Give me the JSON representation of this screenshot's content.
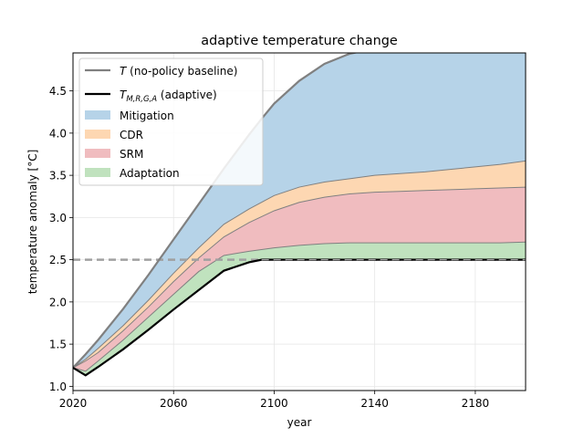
{
  "chart_data": {
    "type": "area",
    "title": "adaptive temperature change",
    "xlabel": "year",
    "ylabel": "temperature anomaly [°C]",
    "xlim": [
      2020,
      2200
    ],
    "ylim": [
      0.95,
      4.95
    ],
    "xticks": [
      2020,
      2060,
      2100,
      2140,
      2180
    ],
    "yticks": [
      1.0,
      1.5,
      2.0,
      2.5,
      3.0,
      3.5,
      4.0,
      4.5
    ],
    "ytick_labels": [
      "1.0",
      "1.5",
      "2.0",
      "2.5",
      "3.0",
      "3.5",
      "4.0",
      "4.5"
    ],
    "grid": true,
    "legend_position": "top-left",
    "x": [
      2020,
      2025,
      2030,
      2040,
      2050,
      2060,
      2070,
      2080,
      2090,
      2095,
      2100,
      2110,
      2120,
      2130,
      2140,
      2150,
      2160,
      2170,
      2180,
      2190,
      2200
    ],
    "series": [
      {
        "name": "T (no-policy baseline)",
        "role": "baseline",
        "color": "#808080",
        "values": [
          1.22,
          1.38,
          1.55,
          1.92,
          2.32,
          2.74,
          3.16,
          3.58,
          3.98,
          4.17,
          4.35,
          4.62,
          4.82,
          4.94,
          5.0,
          5.04,
          5.08,
          5.12,
          5.16,
          5.2,
          5.24
        ]
      },
      {
        "name": "Mitigation",
        "role": "band",
        "color": "#b6d3e8",
        "values": [
          1.22,
          1.32,
          1.45,
          1.72,
          2.02,
          2.34,
          2.64,
          2.92,
          3.1,
          3.18,
          3.26,
          3.36,
          3.42,
          3.46,
          3.5,
          3.52,
          3.54,
          3.57,
          3.6,
          3.63,
          3.67
        ]
      },
      {
        "name": "CDR",
        "role": "band",
        "color": "#fdd7b2",
        "values": [
          1.22,
          1.3,
          1.4,
          1.66,
          1.94,
          2.24,
          2.52,
          2.77,
          2.94,
          3.01,
          3.08,
          3.18,
          3.24,
          3.28,
          3.3,
          3.31,
          3.32,
          3.33,
          3.34,
          3.35,
          3.36
        ]
      },
      {
        "name": "SRM",
        "role": "band",
        "color": "#f0bcbf",
        "values": [
          1.22,
          1.18,
          1.3,
          1.55,
          1.82,
          2.09,
          2.36,
          2.55,
          2.6,
          2.62,
          2.64,
          2.67,
          2.69,
          2.7,
          2.7,
          2.7,
          2.7,
          2.7,
          2.7,
          2.7,
          2.71
        ]
      },
      {
        "name": "Adaptation",
        "role": "band",
        "color": "#c0e2be",
        "values": [
          1.22,
          1.13,
          1.23,
          1.44,
          1.67,
          1.91,
          2.14,
          2.37,
          2.47,
          2.5,
          2.5,
          2.5,
          2.5,
          2.5,
          2.5,
          2.5,
          2.5,
          2.5,
          2.5,
          2.5,
          2.5
        ]
      },
      {
        "name": "T_{M,R,G,A} (adaptive)",
        "role": "adaptive",
        "color": "#000000",
        "values": [
          1.22,
          1.13,
          1.23,
          1.44,
          1.67,
          1.91,
          2.14,
          2.37,
          2.47,
          2.5,
          2.5,
          2.5,
          2.5,
          2.5,
          2.5,
          2.5,
          2.5,
          2.5,
          2.5,
          2.5,
          2.5
        ]
      }
    ],
    "reference_line": {
      "y": 2.5,
      "style": "dashed",
      "color": "#a0a0a0"
    }
  },
  "legend": {
    "baseline_sym": "T",
    "baseline_rest": " (no-policy baseline)",
    "adaptive_sym": "T",
    "adaptive_sub": "M,R,G,A",
    "adaptive_rest": " (adaptive)",
    "mitigation": "Mitigation",
    "cdr": "CDR",
    "srm": "SRM",
    "adaptation": "Adaptation"
  }
}
